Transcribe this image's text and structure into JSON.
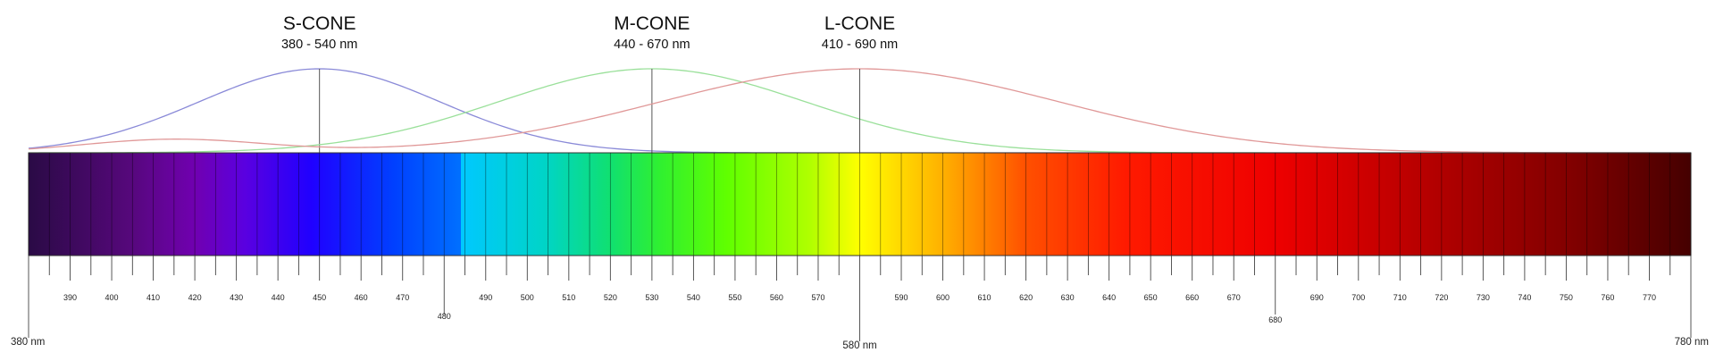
{
  "cones": [
    {
      "name": "S-CONE",
      "range": "380 - 540 nm",
      "peak": 450,
      "sigma": 29,
      "start": 380,
      "end": 540,
      "color": "#8a8ad8"
    },
    {
      "name": "M-CONE",
      "range": "440 - 670 nm",
      "peak": 530,
      "sigma": 37,
      "start": 440,
      "end": 670,
      "color": "#9ae09a"
    },
    {
      "name": "L-CONE",
      "range": "410 - 690 nm",
      "peak": 580,
      "sigma": 48,
      "start": 410,
      "end": 690,
      "color": "#e09898"
    }
  ],
  "spectrum": {
    "min": 380,
    "max": 780,
    "step": 5,
    "labeled_step": 10
  },
  "tick_labels": [
    {
      "value": 390,
      "text": "390"
    },
    {
      "value": 400,
      "text": "400"
    },
    {
      "value": 410,
      "text": "410"
    },
    {
      "value": 420,
      "text": "420"
    },
    {
      "value": 430,
      "text": "430"
    },
    {
      "value": 440,
      "text": "440"
    },
    {
      "value": 450,
      "text": "450"
    },
    {
      "value": 460,
      "text": "460"
    },
    {
      "value": 470,
      "text": "470"
    },
    {
      "value": 480,
      "text": "480"
    },
    {
      "value": 490,
      "text": "490"
    },
    {
      "value": 500,
      "text": "500"
    },
    {
      "value": 510,
      "text": "510"
    },
    {
      "value": 520,
      "text": "520"
    },
    {
      "value": 530,
      "text": "530"
    },
    {
      "value": 540,
      "text": "540"
    },
    {
      "value": 550,
      "text": "550"
    },
    {
      "value": 560,
      "text": "560"
    },
    {
      "value": 570,
      "text": "570"
    },
    {
      "value": 590,
      "text": "590"
    },
    {
      "value": 600,
      "text": "600"
    },
    {
      "value": 610,
      "text": "610"
    },
    {
      "value": 620,
      "text": "620"
    },
    {
      "value": 630,
      "text": "630"
    },
    {
      "value": 640,
      "text": "640"
    },
    {
      "value": 650,
      "text": "650"
    },
    {
      "value": 660,
      "text": "660"
    },
    {
      "value": 670,
      "text": "670"
    },
    {
      "value": 680,
      "text": "680"
    },
    {
      "value": 690,
      "text": "690"
    },
    {
      "value": 700,
      "text": "700"
    },
    {
      "value": 710,
      "text": "710"
    },
    {
      "value": 720,
      "text": "720"
    },
    {
      "value": 730,
      "text": "730"
    },
    {
      "value": 740,
      "text": "740"
    },
    {
      "value": 750,
      "text": "750"
    },
    {
      "value": 760,
      "text": "760"
    },
    {
      "value": 770,
      "text": "770"
    }
  ],
  "end_labels": [
    {
      "value": 380,
      "text": "380 nm"
    },
    {
      "value": 580,
      "text": "580 nm"
    },
    {
      "value": 780,
      "text": "780 nm"
    }
  ]
}
